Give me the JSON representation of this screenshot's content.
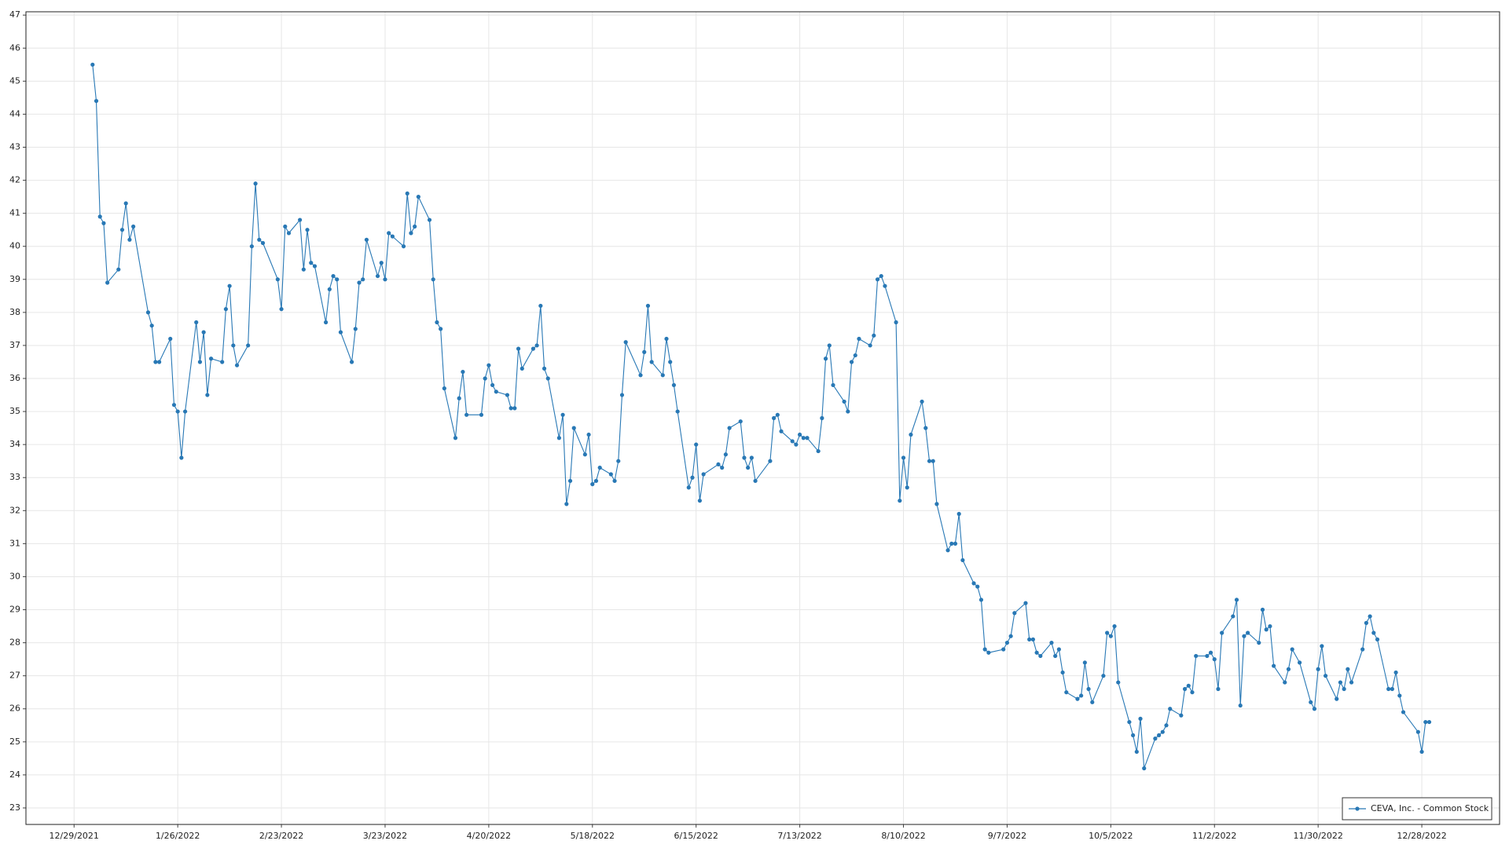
{
  "chart_data": {
    "type": "line",
    "x": [
      "1/3/2022",
      "1/4/2022",
      "1/5/2022",
      "1/6/2022",
      "1/7/2022",
      "1/10/2022",
      "1/11/2022",
      "1/12/2022",
      "1/13/2022",
      "1/14/2022",
      "1/18/2022",
      "1/19/2022",
      "1/20/2022",
      "1/21/2022",
      "1/24/2022",
      "1/25/2022",
      "1/26/2022",
      "1/27/2022",
      "1/28/2022",
      "1/31/2022",
      "2/1/2022",
      "2/2/2022",
      "2/3/2022",
      "2/4/2022",
      "2/7/2022",
      "2/8/2022",
      "2/9/2022",
      "2/10/2022",
      "2/11/2022",
      "2/14/2022",
      "2/15/2022",
      "2/16/2022",
      "2/17/2022",
      "2/18/2022",
      "2/22/2022",
      "2/23/2022",
      "2/24/2022",
      "2/25/2022",
      "2/28/2022",
      "3/1/2022",
      "3/2/2022",
      "3/3/2022",
      "3/4/2022",
      "3/7/2022",
      "3/8/2022",
      "3/9/2022",
      "3/10/2022",
      "3/11/2022",
      "3/14/2022",
      "3/15/2022",
      "3/16/2022",
      "3/17/2022",
      "3/18/2022",
      "3/21/2022",
      "3/22/2022",
      "3/23/2022",
      "3/24/2022",
      "3/25/2022",
      "3/28/2022",
      "3/29/2022",
      "3/30/2022",
      "3/31/2022",
      "4/1/2022",
      "4/4/2022",
      "4/5/2022",
      "4/6/2022",
      "4/7/2022",
      "4/8/2022",
      "4/11/2022",
      "4/12/2022",
      "4/13/2022",
      "4/14/2022",
      "4/18/2022",
      "4/19/2022",
      "4/20/2022",
      "4/21/2022",
      "4/22/2022",
      "4/25/2022",
      "4/26/2022",
      "4/27/2022",
      "4/28/2022",
      "4/29/2022",
      "5/2/2022",
      "5/3/2022",
      "5/4/2022",
      "5/5/2022",
      "5/6/2022",
      "5/9/2022",
      "5/10/2022",
      "5/11/2022",
      "5/12/2022",
      "5/13/2022",
      "5/16/2022",
      "5/17/2022",
      "5/18/2022",
      "5/19/2022",
      "5/20/2022",
      "5/23/2022",
      "5/24/2022",
      "5/25/2022",
      "5/26/2022",
      "5/27/2022",
      "5/31/2022",
      "6/1/2022",
      "6/2/2022",
      "6/3/2022",
      "6/6/2022",
      "6/7/2022",
      "6/8/2022",
      "6/9/2022",
      "6/10/2022",
      "6/13/2022",
      "6/14/2022",
      "6/15/2022",
      "6/16/2022",
      "6/17/2022",
      "6/21/2022",
      "6/22/2022",
      "6/23/2022",
      "6/24/2022",
      "6/27/2022",
      "6/28/2022",
      "6/29/2022",
      "6/30/2022",
      "7/1/2022",
      "7/5/2022",
      "7/6/2022",
      "7/7/2022",
      "7/8/2022",
      "7/11/2022",
      "7/12/2022",
      "7/13/2022",
      "7/14/2022",
      "7/15/2022",
      "7/18/2022",
      "7/19/2022",
      "7/20/2022",
      "7/21/2022",
      "7/22/2022",
      "7/25/2022",
      "7/26/2022",
      "7/27/2022",
      "7/28/2022",
      "7/29/2022",
      "8/1/2022",
      "8/2/2022",
      "8/3/2022",
      "8/4/2022",
      "8/5/2022",
      "8/8/2022",
      "8/9/2022",
      "8/10/2022",
      "8/11/2022",
      "8/12/2022",
      "8/15/2022",
      "8/16/2022",
      "8/17/2022",
      "8/18/2022",
      "8/19/2022",
      "8/22/2022",
      "8/23/2022",
      "8/24/2022",
      "8/25/2022",
      "8/26/2022",
      "8/29/2022",
      "8/30/2022",
      "8/31/2022",
      "9/1/2022",
      "9/2/2022",
      "9/6/2022",
      "9/7/2022",
      "9/8/2022",
      "9/9/2022",
      "9/12/2022",
      "9/13/2022",
      "9/14/2022",
      "9/15/2022",
      "9/16/2022",
      "9/19/2022",
      "9/20/2022",
      "9/21/2022",
      "9/22/2022",
      "9/23/2022",
      "9/26/2022",
      "9/27/2022",
      "9/28/2022",
      "9/29/2022",
      "9/30/2022",
      "10/3/2022",
      "10/4/2022",
      "10/5/2022",
      "10/6/2022",
      "10/7/2022",
      "10/10/2022",
      "10/11/2022",
      "10/12/2022",
      "10/13/2022",
      "10/14/2022",
      "10/17/2022",
      "10/18/2022",
      "10/19/2022",
      "10/20/2022",
      "10/21/2022",
      "10/24/2022",
      "10/25/2022",
      "10/26/2022",
      "10/27/2022",
      "10/28/2022",
      "10/31/2022",
      "11/1/2022",
      "11/2/2022",
      "11/3/2022",
      "11/4/2022",
      "11/7/2022",
      "11/8/2022",
      "11/9/2022",
      "11/10/2022",
      "11/11/2022",
      "11/14/2022",
      "11/15/2022",
      "11/16/2022",
      "11/17/2022",
      "11/18/2022",
      "11/21/2022",
      "11/22/2022",
      "11/23/2022",
      "11/25/2022",
      "11/28/2022",
      "11/29/2022",
      "11/30/2022",
      "12/1/2022",
      "12/2/2022",
      "12/5/2022",
      "12/6/2022",
      "12/7/2022",
      "12/8/2022",
      "12/9/2022",
      "12/12/2022",
      "12/13/2022",
      "12/14/2022",
      "12/15/2022",
      "12/16/2022",
      "12/19/2022",
      "12/20/2022",
      "12/21/2022",
      "12/22/2022",
      "12/23/2022",
      "12/27/2022",
      "12/28/2022",
      "12/29/2022",
      "12/30/2022"
    ],
    "series": [
      {
        "name": "CEVA, Inc. - Common Stock",
        "color": "#2878b5",
        "values": [
          45.5,
          44.4,
          40.9,
          40.7,
          38.9,
          39.3,
          40.5,
          41.3,
          40.2,
          40.6,
          38.0,
          37.6,
          36.5,
          36.5,
          37.2,
          35.2,
          35.0,
          33.6,
          35.0,
          37.7,
          36.5,
          37.4,
          35.5,
          36.6,
          36.5,
          38.1,
          38.8,
          37.0,
          36.4,
          37.0,
          40.0,
          41.9,
          40.2,
          40.1,
          39.0,
          38.1,
          40.6,
          40.4,
          40.8,
          39.3,
          40.5,
          39.5,
          39.4,
          37.7,
          38.7,
          39.1,
          39.0,
          37.4,
          36.5,
          37.5,
          38.9,
          39.0,
          40.2,
          39.1,
          39.5,
          39.0,
          40.4,
          40.3,
          40.0,
          41.6,
          40.4,
          40.6,
          41.5,
          40.8,
          39.0,
          37.7,
          37.5,
          35.7,
          34.2,
          35.4,
          36.2,
          34.9,
          34.9,
          36.0,
          36.4,
          35.8,
          35.6,
          35.5,
          35.1,
          35.1,
          36.9,
          36.3,
          36.9,
          37.0,
          38.2,
          36.3,
          36.0,
          34.2,
          34.9,
          32.2,
          32.9,
          34.5,
          33.7,
          34.3,
          32.8,
          32.9,
          33.3,
          33.1,
          32.9,
          33.5,
          35.5,
          37.1,
          36.1,
          36.8,
          38.2,
          36.5,
          36.1,
          37.2,
          36.5,
          35.8,
          35.0,
          32.7,
          33.0,
          34.0,
          32.3,
          33.1,
          33.4,
          33.3,
          33.7,
          34.5,
          34.7,
          33.6,
          33.3,
          33.6,
          32.9,
          33.5,
          34.8,
          34.9,
          34.4,
          34.1,
          34.0,
          34.3,
          34.2,
          34.2,
          33.8,
          34.8,
          36.6,
          37.0,
          35.8,
          35.3,
          35.0,
          36.5,
          36.7,
          37.2,
          37.0,
          37.3,
          39.0,
          39.1,
          38.8,
          37.7,
          32.3,
          33.6,
          32.7,
          34.3,
          35.3,
          34.5,
          33.5,
          33.5,
          32.2,
          30.8,
          31.0,
          31.0,
          31.9,
          30.5,
          29.8,
          29.7,
          29.3,
          27.8,
          27.7,
          27.8,
          28.0,
          28.2,
          28.9,
          29.2,
          28.1,
          28.1,
          27.7,
          27.6,
          28.0,
          27.6,
          27.8,
          27.1,
          26.5,
          26.3,
          26.4,
          27.4,
          26.6,
          26.2,
          27.0,
          28.3,
          28.2,
          28.5,
          26.8,
          25.6,
          25.2,
          24.7,
          25.7,
          24.2,
          25.1,
          25.2,
          25.3,
          25.5,
          26.0,
          25.8,
          26.6,
          26.7,
          26.5,
          27.6,
          27.6,
          27.7,
          27.5,
          26.6,
          28.3,
          28.8,
          29.3,
          26.1,
          28.2,
          28.3,
          28.0,
          29.0,
          28.4,
          28.5,
          27.3,
          26.8,
          27.2,
          27.8,
          27.4,
          26.2,
          26.0,
          27.2,
          27.9,
          27.0,
          26.3,
          26.8,
          26.6,
          27.2,
          26.8,
          27.8,
          28.6,
          28.8,
          28.3,
          28.1,
          26.6,
          26.6,
          27.1,
          26.4,
          25.9,
          25.3,
          24.7,
          25.6,
          25.6
        ]
      }
    ],
    "xlim": [
      "12/16/2021",
      "1/18/2023"
    ],
    "xticks": [
      "12/29/2021",
      "1/26/2022",
      "2/23/2022",
      "3/23/2022",
      "4/20/2022",
      "5/18/2022",
      "6/15/2022",
      "7/13/2022",
      "8/10/2022",
      "9/7/2022",
      "10/5/2022",
      "11/2/2022",
      "11/30/2022",
      "12/28/2022"
    ],
    "ylim": [
      22.5,
      47.1
    ],
    "yticks": [
      23,
      24,
      25,
      26,
      27,
      28,
      29,
      30,
      31,
      32,
      33,
      34,
      35,
      36,
      37,
      38,
      39,
      40,
      41,
      42,
      43,
      44,
      45,
      46,
      47
    ],
    "grid": true,
    "legend": "lower right"
  }
}
